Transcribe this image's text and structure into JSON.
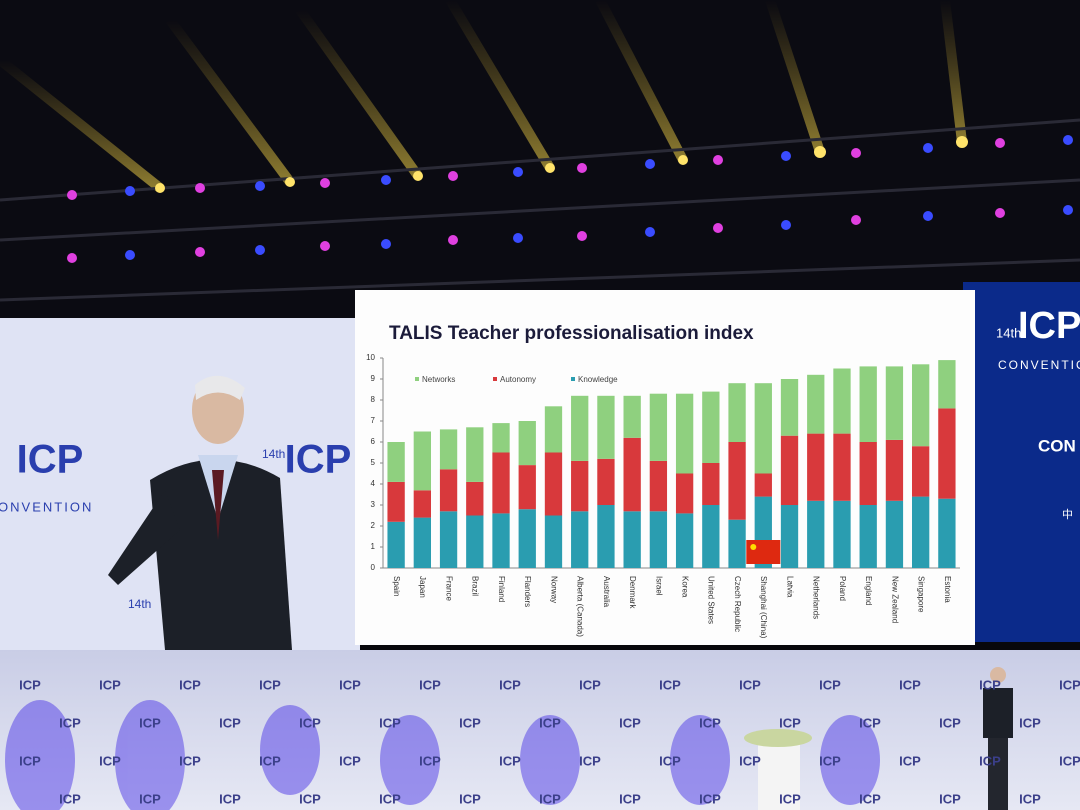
{
  "chart_data": {
    "type": "stacked-bar",
    "title": "TALIS Teacher professionalisation index",
    "categories": [
      "Spain",
      "Japan",
      "France",
      "Brazil",
      "Finland",
      "Flanders",
      "Norway",
      "Alberta (Canada)",
      "Australia",
      "Denmark",
      "Israel",
      "Korea",
      "United States",
      "Czech Republic",
      "Shanghai (China)",
      "Latvia",
      "Netherlands",
      "Poland",
      "England",
      "New Zealand",
      "Singapore",
      "Estonia"
    ],
    "series": [
      {
        "name": "Knowledge",
        "color": "#2a9db0",
        "values": [
          2.2,
          2.4,
          2.7,
          2.5,
          2.6,
          2.8,
          2.5,
          2.7,
          3.0,
          2.7,
          2.7,
          2.6,
          3.0,
          2.3,
          3.4,
          3.0,
          3.2,
          3.2,
          3.0,
          3.2,
          3.4,
          3.3
        ]
      },
      {
        "name": "Autonomy",
        "color": "#d8393c",
        "values": [
          1.9,
          1.3,
          2.0,
          1.6,
          2.9,
          2.1,
          3.0,
          2.4,
          2.2,
          3.5,
          2.4,
          1.9,
          2.0,
          3.7,
          1.1,
          3.3,
          3.2,
          3.2,
          3.0,
          2.9,
          2.4,
          4.3
        ]
      },
      {
        "name": "Networks",
        "color": "#8fd07f",
        "values": [
          1.9,
          2.8,
          1.9,
          2.6,
          1.4,
          2.1,
          2.2,
          3.1,
          3.0,
          2.0,
          3.2,
          3.8,
          3.4,
          2.8,
          4.3,
          2.7,
          2.8,
          3.1,
          3.6,
          3.5,
          3.9,
          2.3
        ]
      }
    ],
    "legend_order": [
      2,
      1,
      0
    ],
    "ylim": [
      0,
      10
    ],
    "yticks": [
      0,
      1,
      2,
      3,
      4,
      5,
      6,
      7,
      8,
      9,
      10
    ],
    "grid": false
  },
  "left_screen": {
    "logo": "ICP",
    "edition": "14th",
    "subtitle": "CONVENTION"
  },
  "right_panel": {
    "edition": "14th",
    "logo": "ICP",
    "subtitle": "CONVENTION",
    "text": "CON",
    "text2": "中"
  },
  "backdrop": {
    "logo": "ICP"
  }
}
